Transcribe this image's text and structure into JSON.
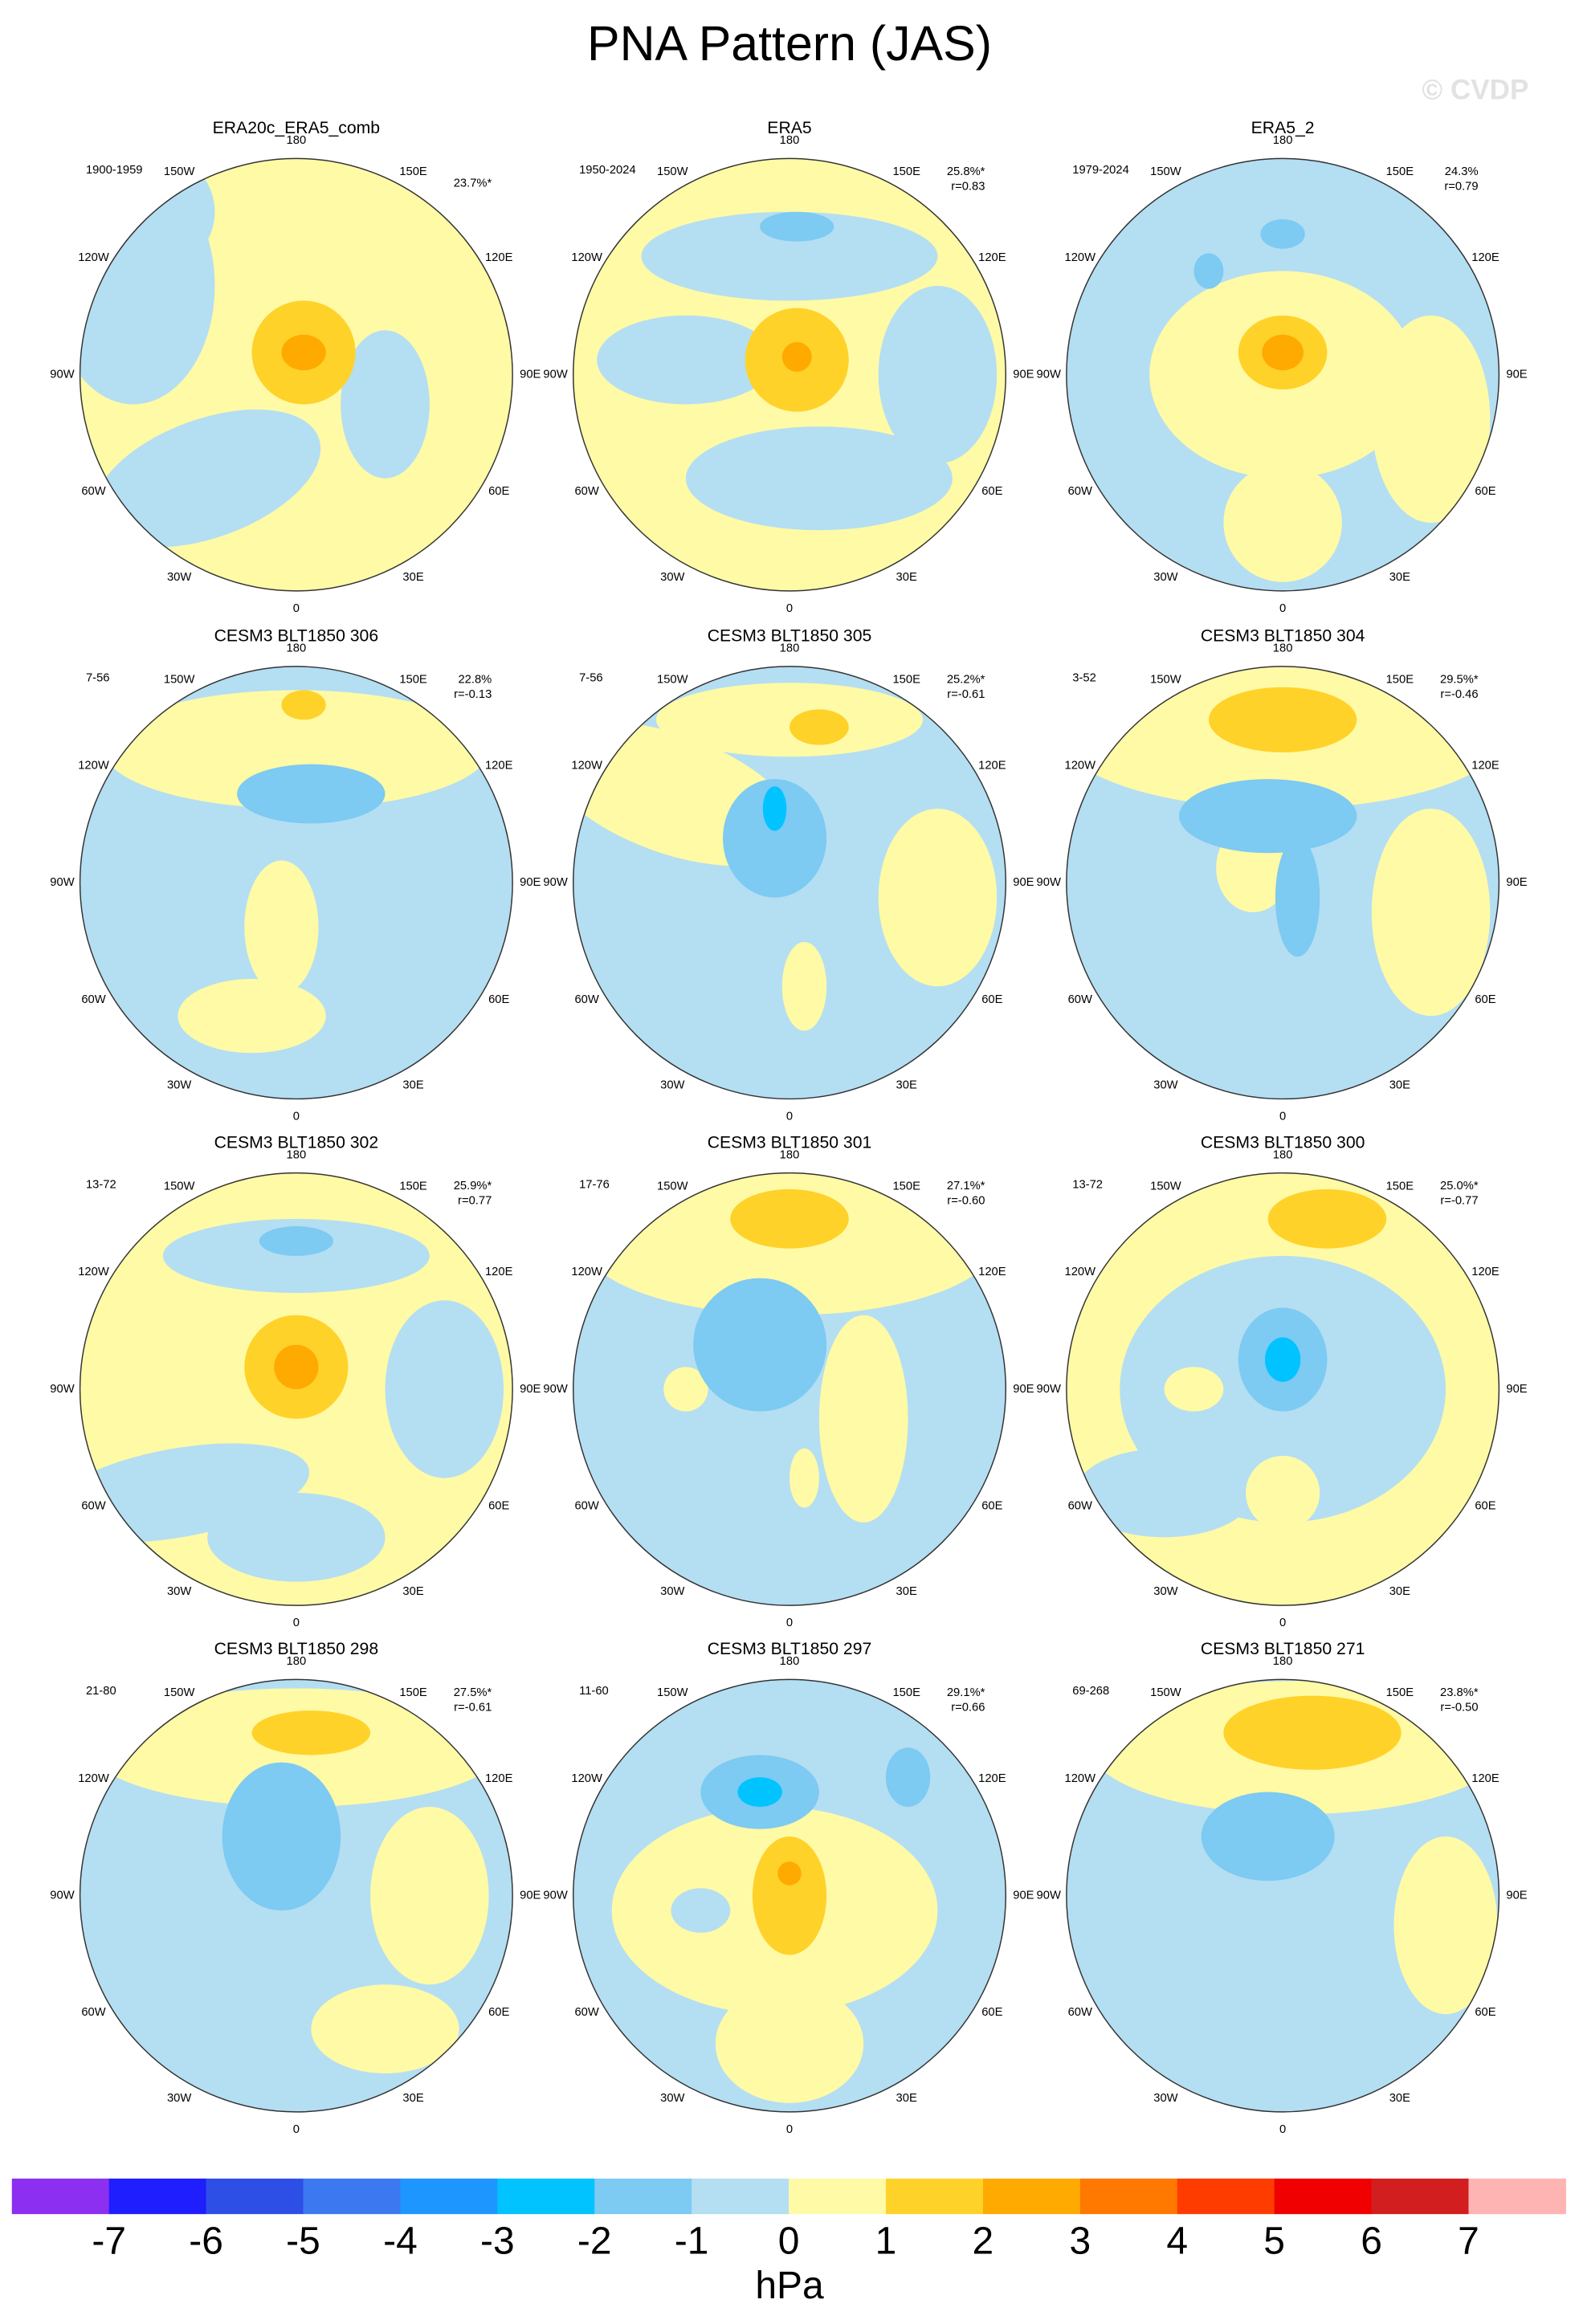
{
  "title": "PNA Pattern (JAS)",
  "watermark": "© CVDP",
  "lon_labels": [
    "180",
    "150E",
    "120E",
    "90E",
    "60E",
    "30E",
    "0",
    "30W",
    "60W",
    "90W",
    "120W",
    "150W"
  ],
  "panels": [
    {
      "title": "ERA20c_ERA5_comb",
      "years": "1900-1959",
      "pct": "23.7%*"
    },
    {
      "title": "ERA5",
      "years": "1950-2024",
      "pct": "25.8%*",
      "r": "r=0.83"
    },
    {
      "title": "ERA5_2",
      "years": "1979-2024",
      "pct": "24.3%",
      "r": "r=0.79"
    },
    {
      "title": "CESM3 BLT1850 306",
      "years": "7-56",
      "pct": "22.8%",
      "r": "r=-0.13"
    },
    {
      "title": "CESM3 BLT1850 305",
      "years": "7-56",
      "pct": "25.2%*",
      "r": "r=-0.61"
    },
    {
      "title": "CESM3 BLT1850 304",
      "years": "3-52",
      "pct": "29.5%*",
      "r": "r=-0.46"
    },
    {
      "title": "CESM3 BLT1850 302",
      "years": "13-72",
      "pct": "25.9%*",
      "r": "r=0.77"
    },
    {
      "title": "CESM3 BLT1850 301",
      "years": "17-76",
      "pct": "27.1%*",
      "r": "r=-0.60"
    },
    {
      "title": "CESM3 BLT1850 300",
      "years": "13-72",
      "pct": "25.0%*",
      "r": "r=-0.77"
    },
    {
      "title": "CESM3 BLT1850 298",
      "years": "21-80",
      "pct": "27.5%*",
      "r": "r=-0.61"
    },
    {
      "title": "CESM3 BLT1850 297",
      "years": "11-60",
      "pct": "29.1%*",
      "r": "r=0.66"
    },
    {
      "title": "CESM3 BLT1850 271",
      "years": "69-268",
      "pct": "23.8%*",
      "r": "r=-0.50"
    }
  ],
  "colorbar": {
    "levels": [
      -7,
      -6,
      -5,
      -4,
      -3,
      -2,
      -1,
      0,
      1,
      2,
      3,
      4,
      5,
      6,
      7
    ],
    "colors": [
      "#8c2ff0",
      "#1e1eff",
      "#2d4fe6",
      "#3c78f0",
      "#1e96ff",
      "#00c3ff",
      "#7dcaf2",
      "#b4def2",
      "#fffaa6",
      "#ffd22a",
      "#ffaa00",
      "#ff7800",
      "#ff3c00",
      "#f00000",
      "#d21e1e",
      "#ffb4b4"
    ],
    "unit": "hPa"
  }
}
